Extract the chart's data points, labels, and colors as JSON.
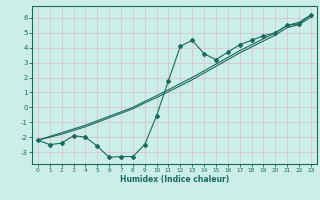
{
  "xlabel": "Humidex (Indice chaleur)",
  "bg_color": "#cceee8",
  "grid_color": "#aaddcc",
  "line_color": "#1a6b5a",
  "xlim": [
    -0.5,
    23.5
  ],
  "ylim": [
    -3.8,
    6.8
  ],
  "xticks": [
    0,
    1,
    2,
    3,
    4,
    5,
    6,
    7,
    8,
    9,
    10,
    11,
    12,
    13,
    14,
    15,
    16,
    17,
    18,
    19,
    20,
    21,
    22,
    23
  ],
  "yticks": [
    -3,
    -2,
    -1,
    0,
    1,
    2,
    3,
    4,
    5,
    6
  ],
  "line1_x": [
    0,
    1,
    2,
    3,
    4,
    5,
    6,
    7,
    8,
    9,
    10,
    11,
    12,
    13,
    14,
    15,
    16,
    17,
    18,
    19,
    20,
    21,
    22,
    23
  ],
  "line1_y": [
    -2.2,
    -2.5,
    -2.4,
    -1.9,
    -2.0,
    -2.6,
    -3.35,
    -3.3,
    -3.3,
    -2.5,
    -0.55,
    1.8,
    4.1,
    4.5,
    3.6,
    3.2,
    3.7,
    4.2,
    4.5,
    4.8,
    5.0,
    5.5,
    5.6,
    6.2
  ],
  "line2_x": [
    0,
    1,
    2,
    3,
    4,
    5,
    6,
    7,
    8,
    9,
    10,
    11,
    12,
    13,
    14,
    15,
    16,
    17,
    18,
    19,
    20,
    21,
    22,
    23
  ],
  "line2_y": [
    -2.2,
    -2.0,
    -1.8,
    -1.55,
    -1.3,
    -1.0,
    -0.7,
    -0.4,
    -0.1,
    0.3,
    0.65,
    1.05,
    1.45,
    1.85,
    2.3,
    2.75,
    3.2,
    3.65,
    4.05,
    4.45,
    4.85,
    5.35,
    5.55,
    6.05
  ],
  "line3_x": [
    0,
    1,
    2,
    3,
    4,
    5,
    6,
    7,
    8,
    9,
    10,
    11,
    12,
    13,
    14,
    15,
    16,
    17,
    18,
    19,
    20,
    21,
    22,
    23
  ],
  "line3_y": [
    -2.2,
    -1.95,
    -1.7,
    -1.45,
    -1.2,
    -0.9,
    -0.6,
    -0.3,
    0.0,
    0.4,
    0.78,
    1.18,
    1.6,
    2.0,
    2.45,
    2.9,
    3.35,
    3.8,
    4.2,
    4.6,
    5.0,
    5.5,
    5.7,
    6.2
  ]
}
